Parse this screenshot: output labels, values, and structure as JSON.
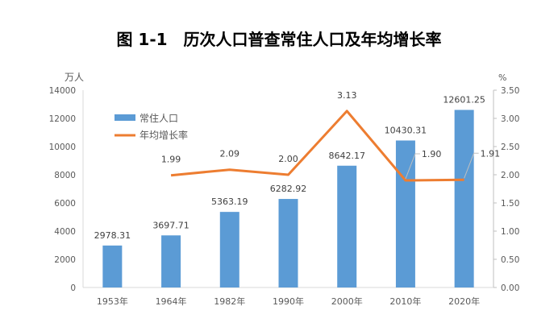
{
  "chart_data": {
    "type": "bar",
    "title": "图 1-1　历次人口普查常住人口及年均增长率",
    "categories": [
      "1953年",
      "1964年",
      "1982年",
      "1990年",
      "2000年",
      "2010年",
      "2020年"
    ],
    "series": [
      {
        "name": "常住人口",
        "type": "bar",
        "axis": "left",
        "color": "#5b9bd5",
        "values": [
          2978.31,
          3697.71,
          5363.19,
          6282.92,
          8642.17,
          10430.31,
          12601.25
        ],
        "labels": [
          "2978.31",
          "3697.71",
          "5363.19",
          "6282.92",
          "8642.17",
          "10430.31",
          "12601.25"
        ]
      },
      {
        "name": "年均增长率",
        "type": "line",
        "axis": "right",
        "color": "#ed7d31",
        "values": [
          null,
          1.99,
          2.09,
          2.0,
          3.13,
          1.9,
          1.91
        ],
        "labels": [
          "",
          "1.99",
          "2.09",
          "2.00",
          "3.13",
          "1.90",
          "1.91"
        ]
      }
    ],
    "yleft": {
      "label": "万人",
      "lim": [
        0,
        14000
      ],
      "ticks": [
        "0",
        "2000",
        "4000",
        "6000",
        "8000",
        "10000",
        "12000",
        "14000"
      ]
    },
    "yright": {
      "label": "%",
      "lim": [
        0,
        3.5
      ],
      "ticks": [
        "0.00",
        "0.50",
        "1.00",
        "1.50",
        "2.00",
        "2.50",
        "3.00",
        "3.50"
      ]
    },
    "legend": "top-left",
    "grid": false
  }
}
